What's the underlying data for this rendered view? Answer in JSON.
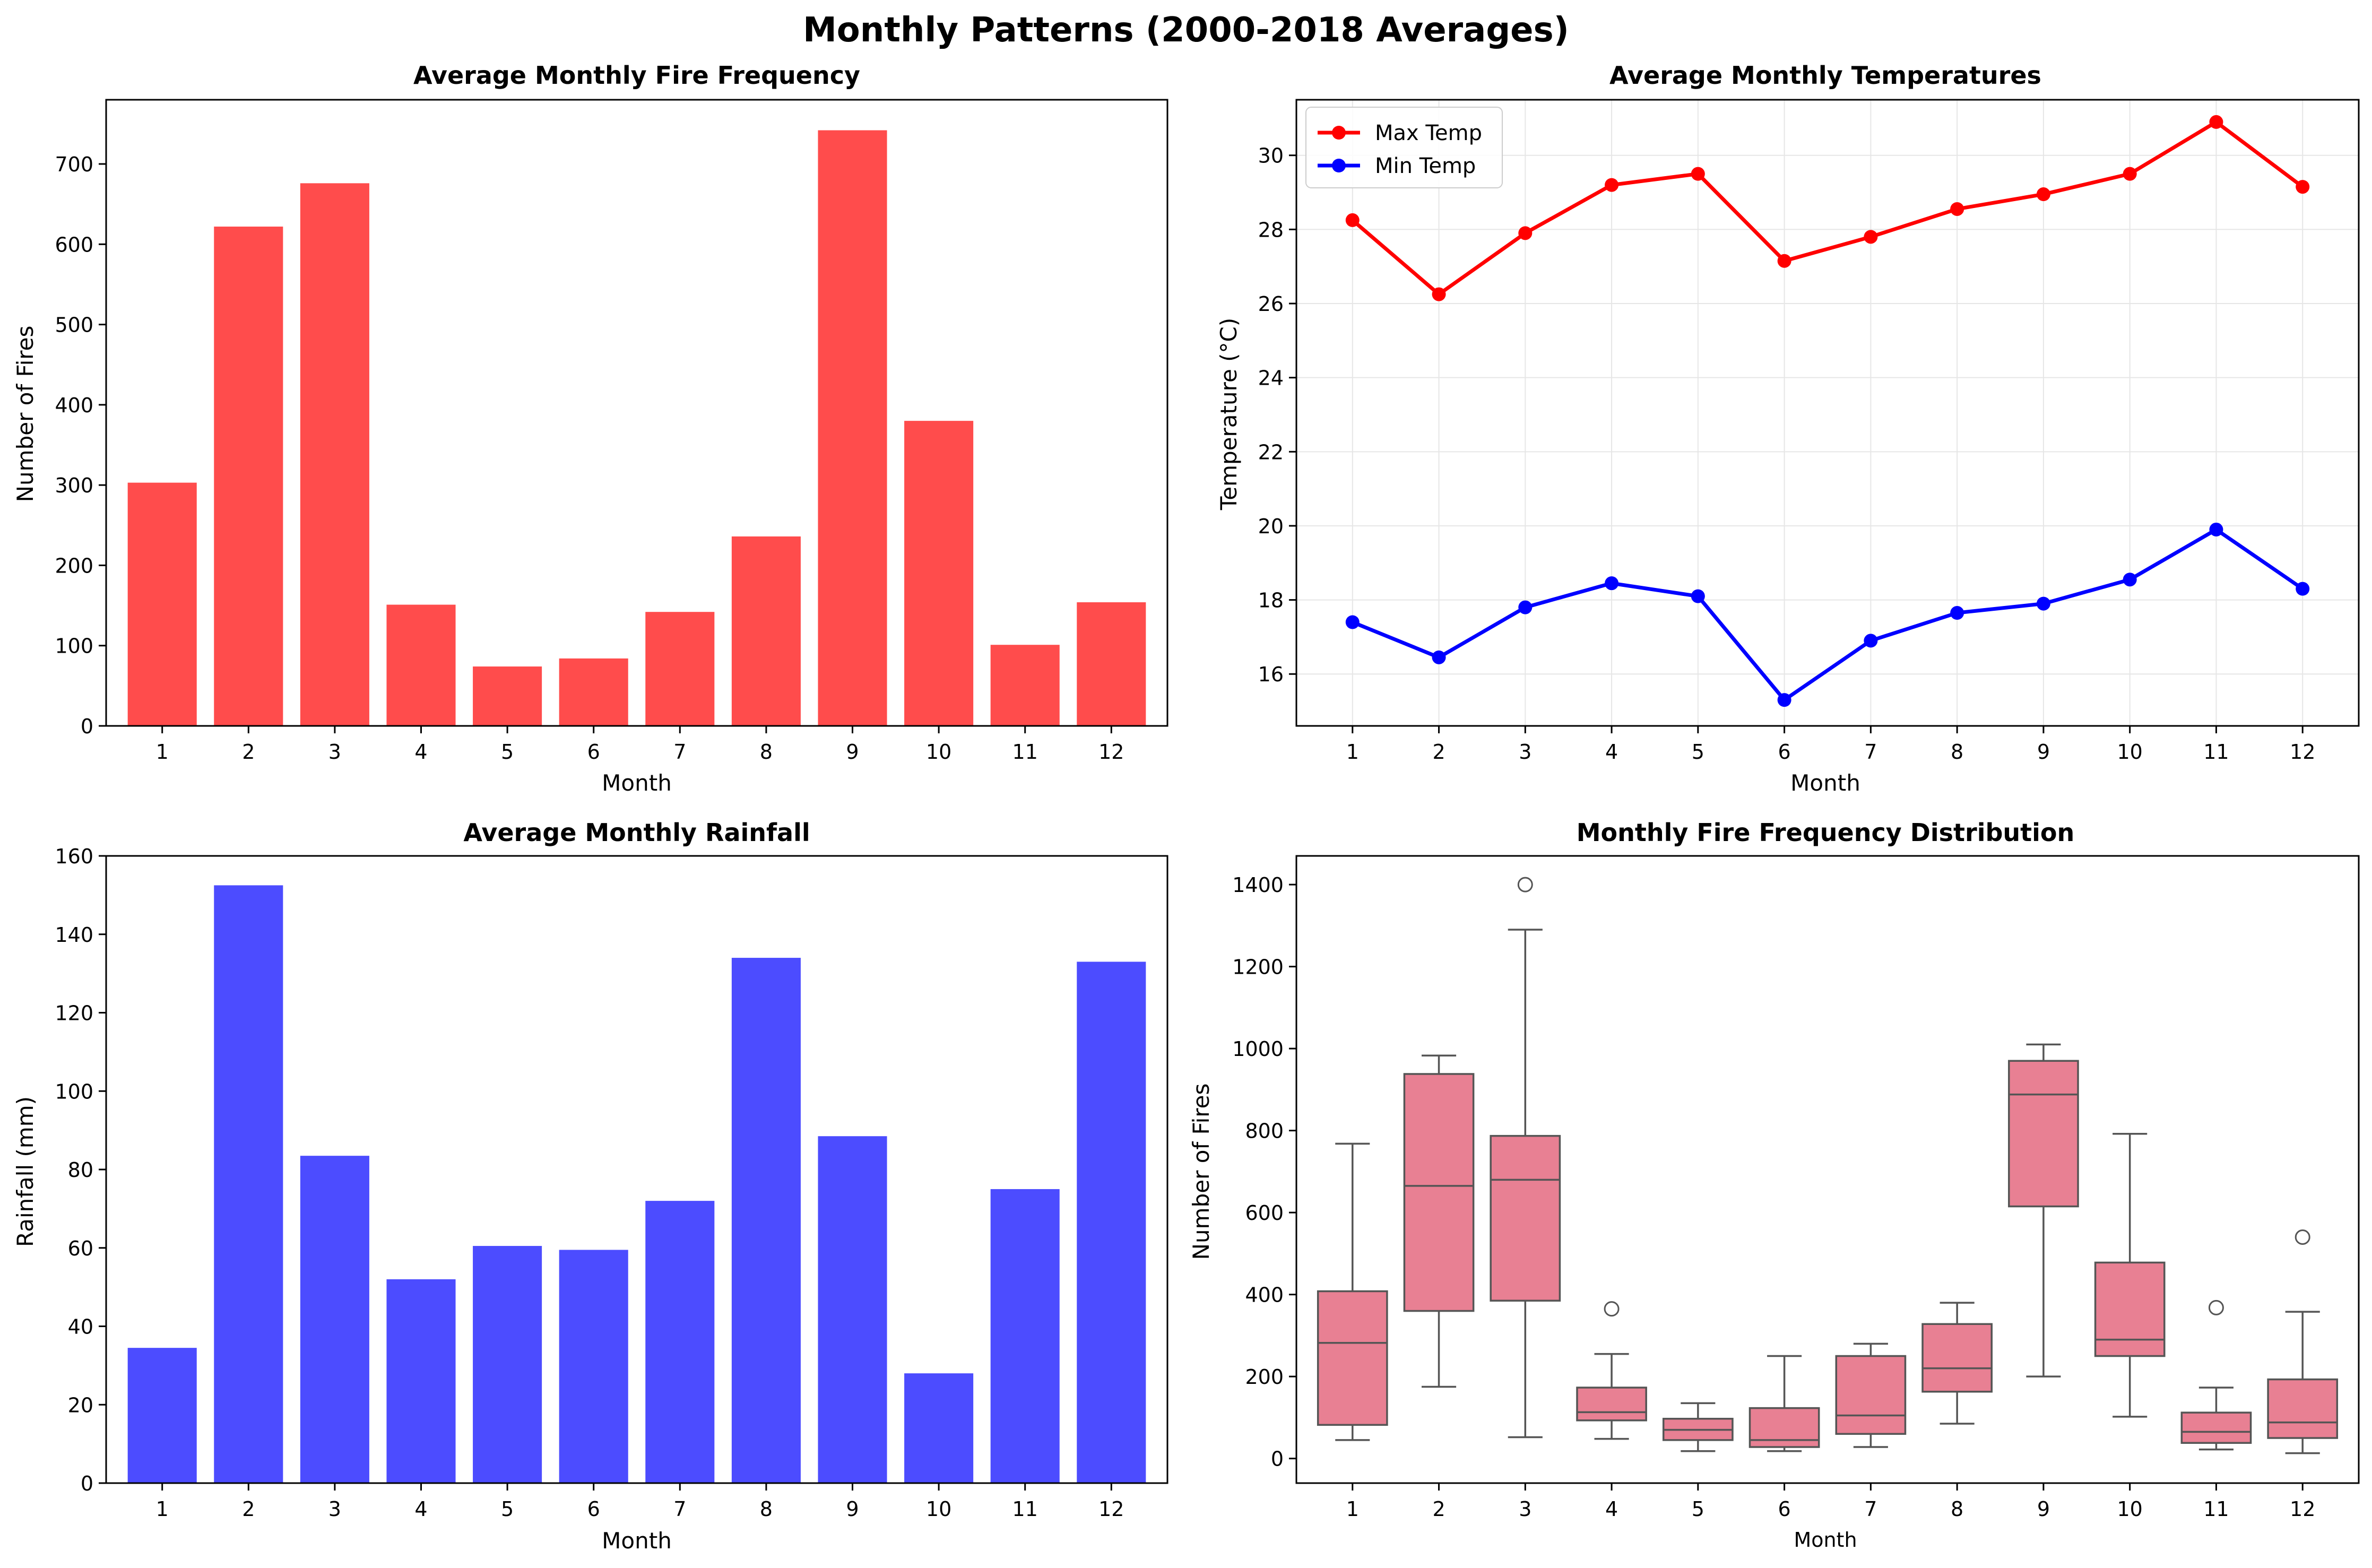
{
  "suptitle": "Monthly Patterns (2000-2018 Averages)",
  "colors": {
    "fire_bar": "#ff4c4c",
    "rain_bar": "#4c4cff",
    "max_temp": "#ff0000",
    "min_temp": "#0000ff",
    "box_fill": "#e88093",
    "box_line": "#555555"
  },
  "chart_data": [
    {
      "type": "bar",
      "title": "Average Monthly Fire Frequency",
      "xlabel": "Month",
      "ylabel": "Number of Fires",
      "categories": [
        "1",
        "2",
        "3",
        "4",
        "5",
        "6",
        "7",
        "8",
        "9",
        "10",
        "11",
        "12"
      ],
      "values": [
        303,
        622,
        676,
        151,
        74,
        84,
        142,
        236,
        742,
        380,
        101,
        154
      ],
      "ylim": [
        0,
        780
      ],
      "yticks": [
        0,
        100,
        200,
        300,
        400,
        500,
        600,
        700
      ],
      "grid": false
    },
    {
      "type": "line",
      "title": "Average Monthly Temperatures",
      "xlabel": "Month",
      "ylabel": "Temperature (°C)",
      "x": [
        "1",
        "2",
        "3",
        "4",
        "5",
        "6",
        "7",
        "8",
        "9",
        "10",
        "11",
        "12"
      ],
      "series": [
        {
          "name": "Max Temp",
          "values": [
            28.25,
            26.25,
            27.9,
            29.2,
            29.5,
            27.15,
            27.8,
            28.55,
            28.95,
            29.5,
            30.9,
            29.15
          ]
        },
        {
          "name": "Min Temp",
          "values": [
            17.4,
            16.45,
            17.8,
            18.45,
            18.1,
            15.3,
            16.9,
            17.65,
            17.9,
            18.55,
            19.9,
            18.3
          ]
        }
      ],
      "ylim": [
        14.6,
        31.5
      ],
      "yticks": [
        16,
        18,
        20,
        22,
        24,
        26,
        28,
        30
      ],
      "grid": true,
      "legend": "top-left"
    },
    {
      "type": "bar",
      "title": "Average Monthly Rainfall",
      "xlabel": "Month",
      "ylabel": "Rainfall (mm)",
      "categories": [
        "1",
        "2",
        "3",
        "4",
        "5",
        "6",
        "7",
        "8",
        "9",
        "10",
        "11",
        "12"
      ],
      "values": [
        34.5,
        152.5,
        83.5,
        52,
        60.5,
        59.5,
        72,
        134,
        88.5,
        28,
        75,
        133
      ],
      "ylim": [
        0,
        160
      ],
      "yticks": [
        0,
        20,
        40,
        60,
        80,
        100,
        120,
        140,
        160
      ],
      "grid": false
    },
    {
      "type": "box",
      "title": "Monthly Fire Frequency Distribution",
      "xlabel": "Month",
      "ylabel": "Number of Fires",
      "categories": [
        "1",
        "2",
        "3",
        "4",
        "5",
        "6",
        "7",
        "8",
        "9",
        "10",
        "11",
        "12"
      ],
      "boxes": [
        {
          "whislo": 45,
          "q1": 82,
          "med": 282,
          "q3": 408,
          "whishi": 768,
          "fliers": []
        },
        {
          "whislo": 175,
          "q1": 360,
          "med": 665,
          "q3": 938,
          "whishi": 983,
          "fliers": []
        },
        {
          "whislo": 52,
          "q1": 385,
          "med": 680,
          "q3": 787,
          "whishi": 1290,
          "fliers": [
            1400
          ]
        },
        {
          "whislo": 48,
          "q1": 93,
          "med": 113,
          "q3": 173,
          "whishi": 255,
          "fliers": [
            365
          ]
        },
        {
          "whislo": 18,
          "q1": 45,
          "med": 70,
          "q3": 97,
          "whishi": 135,
          "fliers": []
        },
        {
          "whislo": 18,
          "q1": 28,
          "med": 45,
          "q3": 123,
          "whishi": 250,
          "fliers": []
        },
        {
          "whislo": 28,
          "q1": 60,
          "med": 105,
          "q3": 250,
          "whishi": 280,
          "fliers": []
        },
        {
          "whislo": 85,
          "q1": 163,
          "med": 220,
          "q3": 328,
          "whishi": 380,
          "fliers": []
        },
        {
          "whislo": 200,
          "q1": 615,
          "med": 888,
          "q3": 970,
          "whishi": 1010,
          "fliers": []
        },
        {
          "whislo": 102,
          "q1": 250,
          "med": 290,
          "q3": 478,
          "whishi": 792,
          "fliers": []
        },
        {
          "whislo": 22,
          "q1": 38,
          "med": 65,
          "q3": 112,
          "whishi": 173,
          "fliers": [
            368
          ]
        },
        {
          "whislo": 13,
          "q1": 50,
          "med": 88,
          "q3": 193,
          "whishi": 358,
          "fliers": [
            540
          ]
        }
      ],
      "ylim": [
        -60,
        1470
      ],
      "yticks": [
        0,
        200,
        400,
        600,
        800,
        1000,
        1200,
        1400
      ],
      "grid": false
    }
  ]
}
